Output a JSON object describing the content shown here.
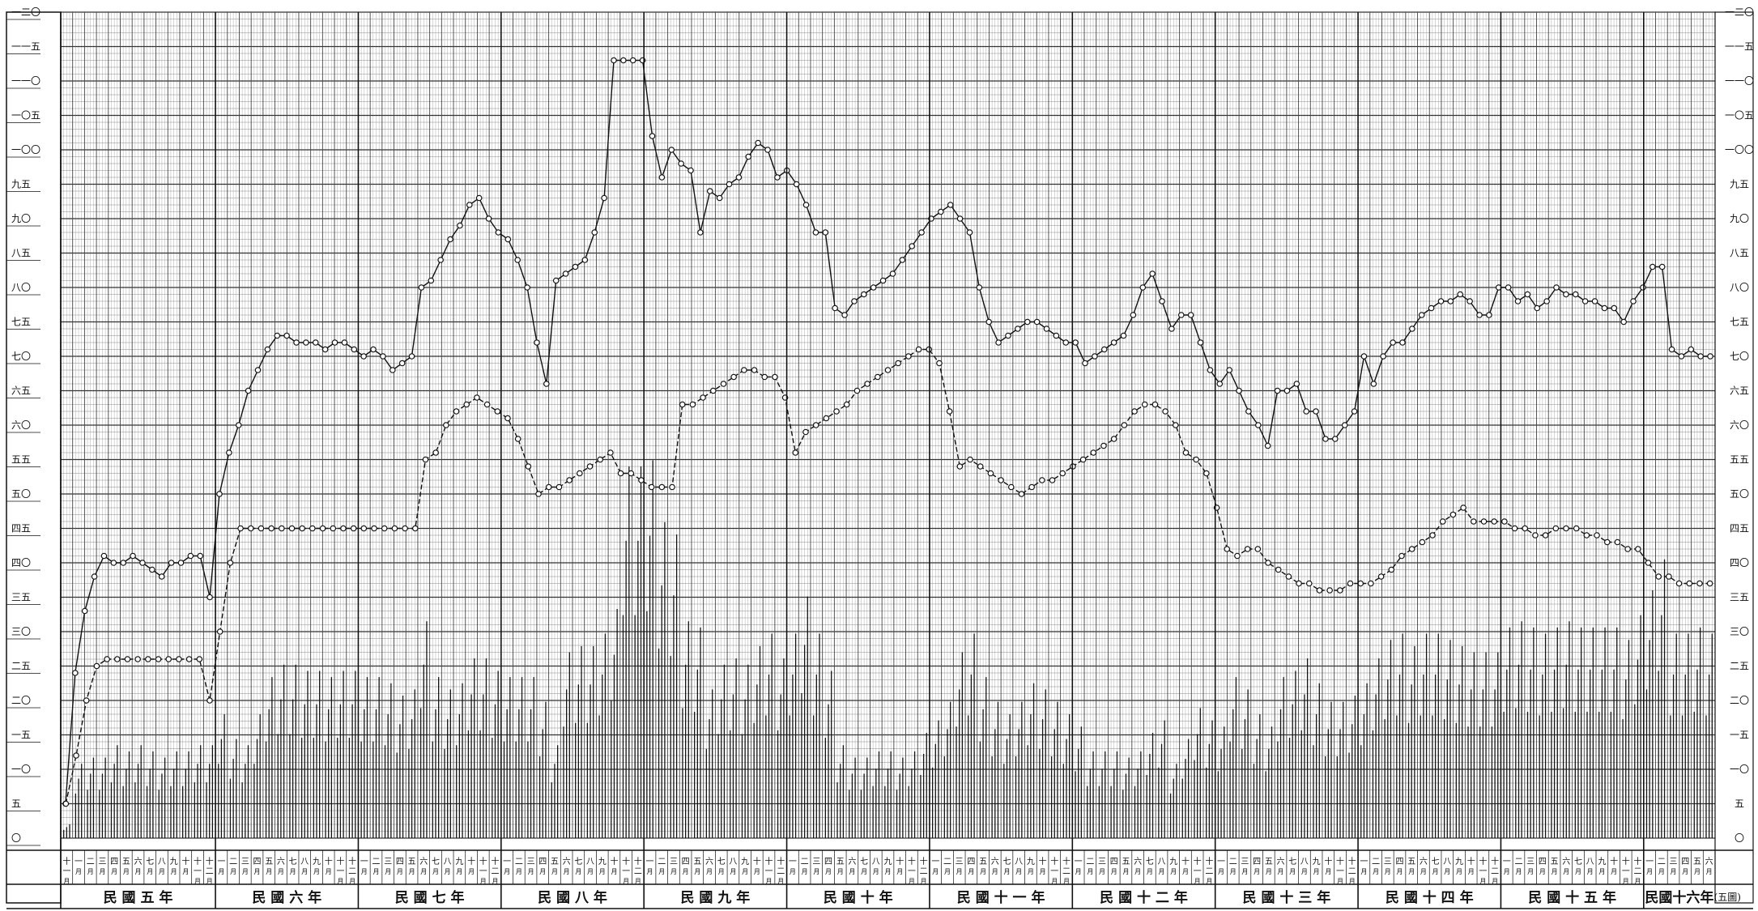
{
  "chart_data": {
    "type": "line",
    "y_ticks": [
      "〇",
      "五",
      "一〇",
      "一五",
      "二〇",
      "二五",
      "三〇",
      "三五",
      "四〇",
      "四五",
      "五〇",
      "五五",
      "六〇",
      "六五",
      "七〇",
      "七五",
      "八〇",
      "八五",
      "九〇",
      "九五",
      "一〇〇",
      "一〇五",
      "一一〇",
      "一一五",
      "一二〇"
    ],
    "y_tick_values": [
      0,
      5,
      10,
      15,
      20,
      25,
      30,
      35,
      40,
      45,
      50,
      55,
      60,
      65,
      70,
      75,
      80,
      85,
      90,
      95,
      100,
      105,
      110,
      115,
      120
    ],
    "ylim": [
      0,
      120
    ],
    "grid": true,
    "corner_label": "(五圖)",
    "years": [
      {
        "label": "民 國 五 年",
        "months": [
          "十一月",
          "一月",
          "二月",
          "三月",
          "四月",
          "五月",
          "六月",
          "七月",
          "八月",
          "九月",
          "十月",
          "十一月",
          "十二月"
        ]
      },
      {
        "label": "民 國 六 年",
        "months": [
          "一月",
          "二月",
          "三月",
          "四月",
          "五月",
          "六月",
          "七月",
          "八月",
          "九月",
          "十月",
          "十一月",
          "十二月"
        ]
      },
      {
        "label": "民 國 七 年",
        "months": [
          "一月",
          "二月",
          "三月",
          "四月",
          "五月",
          "六月",
          "七月",
          "八月",
          "九月",
          "十月",
          "十一月",
          "十二月"
        ]
      },
      {
        "label": "民 國 八 年",
        "months": [
          "一月",
          "二月",
          "三月",
          "四月",
          "五月",
          "六月",
          "七月",
          "八月",
          "九月",
          "十月",
          "十一月",
          "十二月"
        ]
      },
      {
        "label": "民 國 九 年",
        "months": [
          "一月",
          "二月",
          "三月",
          "四月",
          "五月",
          "六月",
          "七月",
          "八月",
          "九月",
          "十月",
          "十一月",
          "十二月"
        ]
      },
      {
        "label": "民 國 十 年",
        "months": [
          "一月",
          "二月",
          "三月",
          "四月",
          "五月",
          "六月",
          "七月",
          "八月",
          "九月",
          "十月",
          "十一月",
          "十二月"
        ]
      },
      {
        "label": "民 國 十 一 年",
        "months": [
          "一月",
          "二月",
          "三月",
          "四月",
          "五月",
          "六月",
          "七月",
          "八月",
          "九月",
          "十月",
          "十一月",
          "十二月"
        ]
      },
      {
        "label": "民 國 十 二 年",
        "months": [
          "一月",
          "二月",
          "三月",
          "四月",
          "五月",
          "六月",
          "七月",
          "八月",
          "九月",
          "十月",
          "十一月",
          "十二月"
        ]
      },
      {
        "label": "民 國 十 三 年",
        "months": [
          "一月",
          "二月",
          "三月",
          "四月",
          "五月",
          "六月",
          "七月",
          "八月",
          "九月",
          "十月",
          "十一月",
          "十二月"
        ]
      },
      {
        "label": "民 國 十 四 年",
        "months": [
          "一月",
          "二月",
          "三月",
          "四月",
          "五月",
          "六月",
          "七月",
          "八月",
          "九月",
          "十月",
          "十一月",
          "十二月"
        ]
      },
      {
        "label": "民 國 十 五 年",
        "months": [
          "一月",
          "二月",
          "三月",
          "四月",
          "五月",
          "六月",
          "七月",
          "八月",
          "九月",
          "十月",
          "十一月",
          "十二月"
        ]
      },
      {
        "label": "民國十六年",
        "months": [
          "一月",
          "二月",
          "三月",
          "四月",
          "五月",
          "六月"
        ]
      }
    ],
    "series": [
      {
        "style": "solid",
        "values": [
          5,
          24,
          33,
          38,
          41,
          40,
          40,
          41,
          40,
          39,
          38,
          40,
          40,
          41,
          41,
          35,
          50,
          56,
          60,
          65,
          68,
          71,
          73,
          73,
          72,
          72,
          72,
          71,
          72,
          72,
          71,
          70,
          71,
          70,
          68,
          69,
          70,
          80,
          81,
          84,
          87,
          89,
          92,
          93,
          90,
          88,
          87,
          84,
          80,
          72,
          66,
          81,
          82,
          83,
          84,
          88,
          93,
          113,
          113,
          113,
          113,
          102,
          96,
          100,
          98,
          97,
          88,
          94,
          93,
          95,
          96,
          99,
          101,
          100,
          96,
          97,
          95,
          92,
          88,
          88,
          77,
          76,
          78,
          79,
          80,
          81,
          82,
          84,
          86,
          88,
          90,
          91,
          92,
          90,
          88,
          80,
          75,
          72,
          73,
          74,
          75,
          75,
          74,
          73,
          72,
          72,
          69,
          70,
          71,
          72,
          73,
          76,
          80,
          82,
          78,
          74,
          76,
          76,
          72,
          68,
          66,
          68,
          65,
          62,
          60,
          57,
          65,
          65,
          66,
          62,
          62,
          58,
          58,
          60,
          62,
          70,
          66,
          70,
          72,
          72,
          74,
          76,
          77,
          78,
          78,
          79,
          78,
          76,
          76,
          80,
          80,
          78,
          79,
          77,
          78,
          80,
          79,
          79,
          78,
          78,
          77,
          77,
          75,
          78,
          80,
          83,
          83,
          71,
          70,
          71,
          70,
          70
        ]
      },
      {
        "style": "dashed",
        "values": [
          5,
          12,
          20,
          25,
          26,
          26,
          26,
          26,
          26,
          26,
          26,
          26,
          26,
          26,
          20,
          30,
          40,
          45,
          45,
          45,
          45,
          45,
          45,
          45,
          45,
          45,
          45,
          45,
          45,
          45,
          45,
          45,
          45,
          45,
          45,
          55,
          56,
          60,
          62,
          63,
          64,
          63,
          62,
          61,
          58,
          54,
          50,
          51,
          51,
          52,
          53,
          54,
          55,
          56,
          53,
          53,
          52,
          51,
          51,
          51,
          63,
          63,
          64,
          65,
          66,
          67,
          68,
          68,
          67,
          67,
          64,
          56,
          59,
          60,
          61,
          62,
          63,
          65,
          66,
          67,
          68,
          69,
          70,
          71,
          71,
          69,
          62,
          54,
          55,
          54,
          53,
          52,
          51,
          50,
          51,
          52,
          52,
          53,
          54,
          55,
          56,
          57,
          58,
          60,
          62,
          63,
          63,
          62,
          60,
          56,
          55,
          53,
          48,
          42,
          41,
          42,
          42,
          40,
          39,
          38,
          37,
          37,
          36,
          36,
          36,
          37,
          37,
          37,
          38,
          39,
          41,
          42,
          43,
          44,
          46,
          47,
          48,
          46,
          46,
          46,
          46,
          45,
          45,
          44,
          44,
          45,
          45,
          45,
          44,
          44,
          43,
          43,
          42,
          42,
          40,
          38,
          38,
          37,
          37,
          37,
          37
        ]
      }
    ],
    "bars": {
      "note": "monthly vertical bar groups (lower panel)",
      "groups_per_month": 3
    }
  }
}
